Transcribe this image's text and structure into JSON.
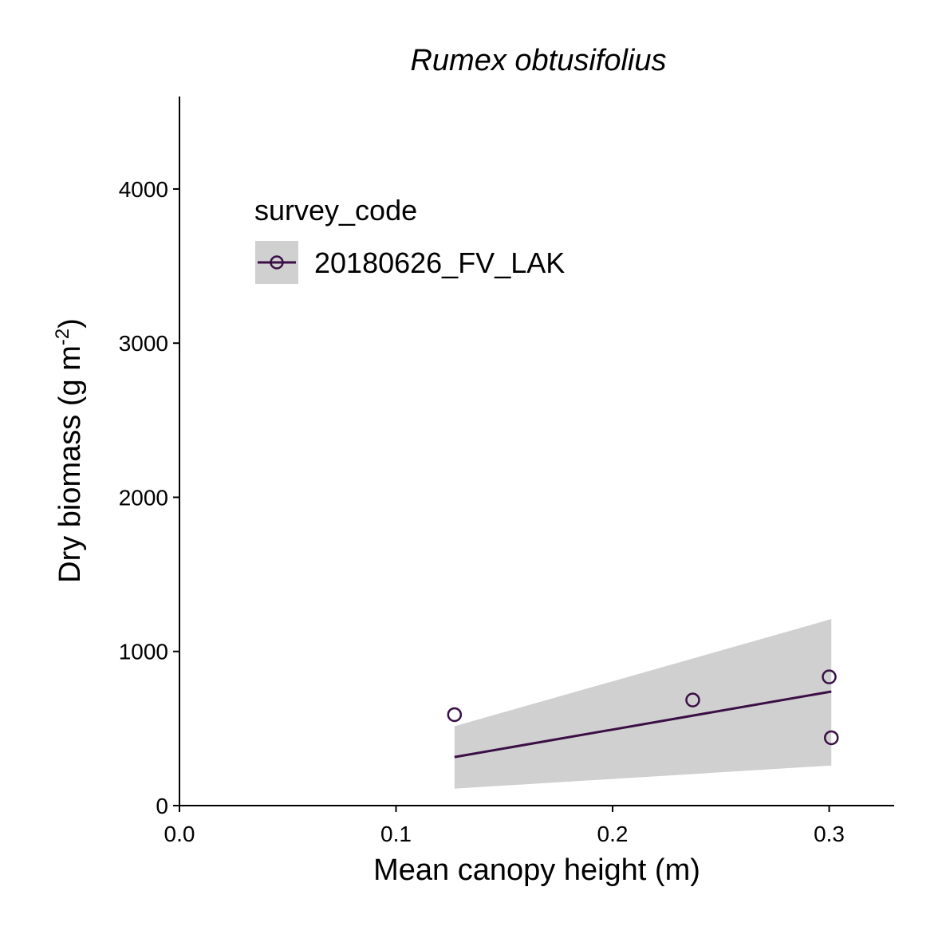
{
  "chart_data": {
    "type": "scatter",
    "title": "Rumex obtusifolius",
    "xlabel": "Mean canopy height (m)",
    "ylabel": "Dry biomass (g m",
    "ylabel_superscript": "-2",
    "ylabel_close": ")",
    "xlim": [
      0.0,
      0.33
    ],
    "ylim": [
      0,
      4600
    ],
    "x_ticks": [
      0.0,
      0.1,
      0.2,
      0.3
    ],
    "x_tick_labels": [
      "0.0",
      "0.1",
      "0.2",
      "0.3"
    ],
    "y_ticks": [
      0,
      1000,
      2000,
      3000,
      4000
    ],
    "y_tick_labels": [
      "0",
      "1000",
      "2000",
      "3000",
      "4000"
    ],
    "grid": false,
    "legend": {
      "title": "survey_code",
      "placement": "top-left",
      "entries": [
        "20180626_FV_LAK"
      ]
    },
    "series": [
      {
        "name": "20180626_FV_LAK",
        "color": "#3b0f45",
        "points": [
          {
            "x": 0.127,
            "y": 590
          },
          {
            "x": 0.237,
            "y": 685
          },
          {
            "x": 0.3,
            "y": 835
          },
          {
            "x": 0.301,
            "y": 440
          }
        ],
        "fit": {
          "x": [
            0.127,
            0.301
          ],
          "y": [
            315,
            740
          ],
          "ci_lower": [
            110,
            260
          ],
          "ci_upper": [
            515,
            1210
          ]
        }
      }
    ],
    "ribbon_color": "#d0d0d0"
  }
}
